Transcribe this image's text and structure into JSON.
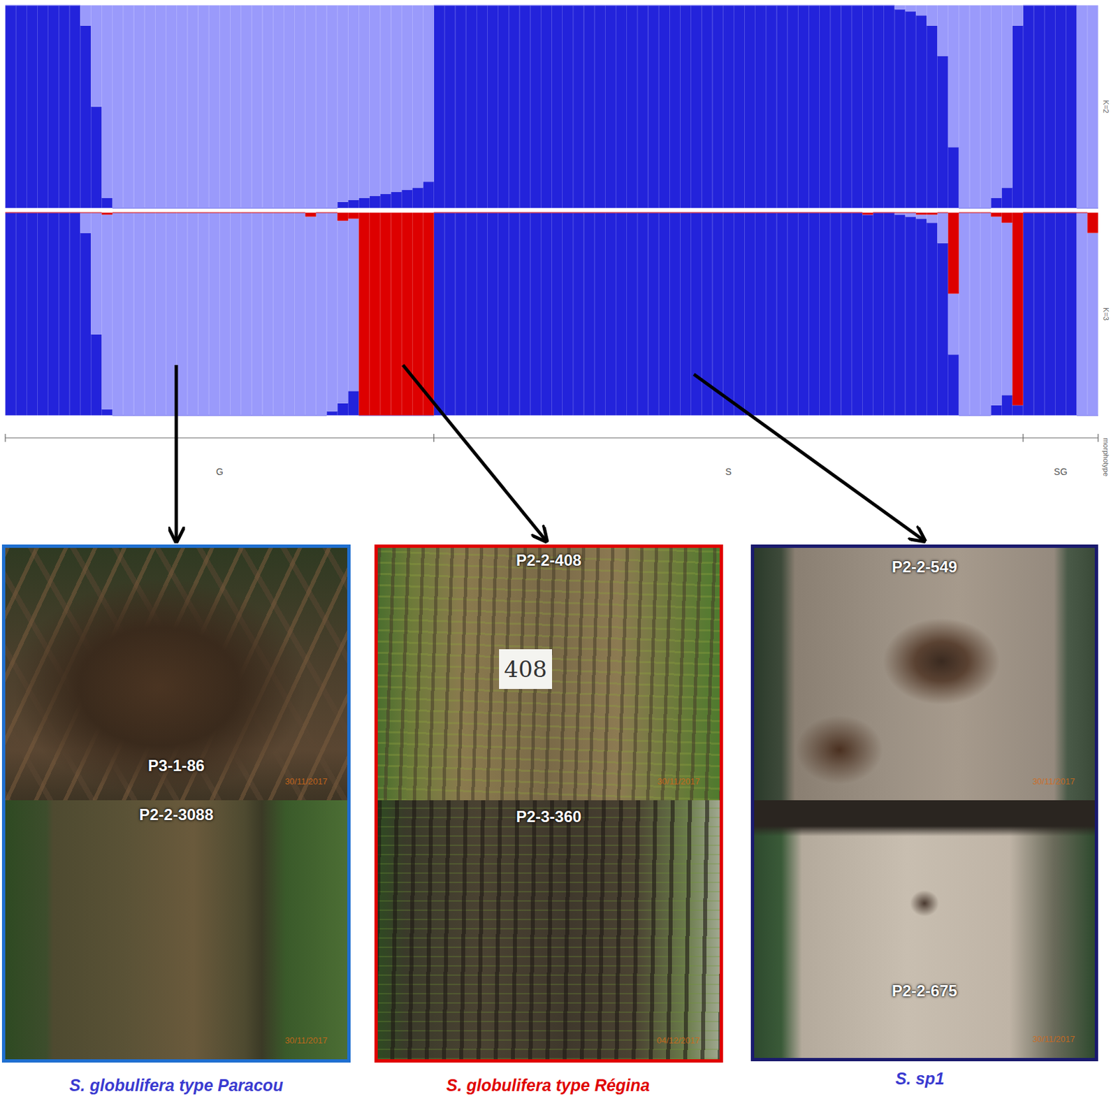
{
  "chart_data": [
    {
      "type": "bar",
      "title": "K=2",
      "stacked": true,
      "tick_labels": false,
      "grid": false,
      "ylim": [
        0,
        1
      ],
      "categories": [
        null,
        null,
        null,
        null,
        null,
        null,
        null,
        null,
        null,
        null,
        null,
        null,
        null,
        null,
        null,
        null,
        null,
        null,
        null,
        null,
        null,
        null,
        null,
        null,
        null,
        null,
        null,
        null,
        null,
        null,
        null,
        null,
        null,
        null,
        null,
        null,
        null,
        null,
        null,
        null,
        null,
        null,
        null,
        null,
        null,
        null,
        null,
        null,
        null,
        null,
        null,
        null,
        null,
        null,
        null,
        null,
        null,
        null,
        null,
        null,
        null,
        null,
        null,
        null,
        null,
        null,
        null,
        null,
        null,
        null,
        null,
        null,
        null,
        null,
        null,
        null,
        null,
        null,
        null,
        null,
        null,
        null,
        null,
        null,
        null,
        null,
        null,
        null,
        null,
        null,
        null,
        null,
        null,
        null,
        null,
        null,
        null,
        null,
        null,
        null,
        null,
        null
      ],
      "series": [
        {
          "color": "#2323db",
          "values": [
            1,
            1,
            1,
            1,
            1,
            1,
            1,
            0.9,
            0.5,
            0.05,
            0,
            0,
            0,
            0,
            0,
            0,
            0,
            0,
            0,
            0,
            0,
            0,
            0,
            0,
            0,
            0,
            0,
            0,
            0,
            0,
            0,
            0.03,
            0.04,
            0.05,
            0.06,
            0.07,
            0.08,
            0.09,
            0.1,
            0.13,
            1,
            1,
            1,
            1,
            1,
            1,
            1,
            1,
            1,
            1,
            1,
            1,
            1,
            1,
            1,
            1,
            1,
            1,
            1,
            1,
            1,
            1,
            1,
            1,
            1,
            1,
            1,
            1,
            1,
            1,
            1,
            1,
            1,
            1,
            1,
            1,
            1,
            1,
            1,
            1,
            1,
            1,
            1,
            0.98,
            0.97,
            0.95,
            0.9,
            0.75,
            0.3,
            0,
            0,
            0,
            0.05,
            0.1,
            0.9,
            1,
            1,
            1,
            1,
            1,
            0,
            0
          ]
        },
        {
          "color": "#9a9afb",
          "values": [
            0,
            0,
            0,
            0,
            0,
            0,
            0,
            0.1,
            0.5,
            0.95,
            1,
            1,
            1,
            1,
            1,
            1,
            1,
            1,
            1,
            1,
            1,
            1,
            1,
            1,
            1,
            1,
            1,
            1,
            1,
            1,
            1,
            0.97,
            0.96,
            0.95,
            0.94,
            0.93,
            0.92,
            0.91,
            0.9,
            0.87,
            0,
            0,
            0,
            0,
            0,
            0,
            0,
            0,
            0,
            0,
            0,
            0,
            0,
            0,
            0,
            0,
            0,
            0,
            0,
            0,
            0,
            0,
            0,
            0,
            0,
            0,
            0,
            0,
            0,
            0,
            0,
            0,
            0,
            0,
            0,
            0,
            0,
            0,
            0,
            0,
            0,
            0,
            0,
            0.02,
            0.03,
            0.05,
            0.1,
            0.25,
            0.7,
            1,
            1,
            1,
            0.95,
            0.9,
            0.1,
            0,
            0,
            0,
            0,
            0,
            1,
            1
          ]
        }
      ]
    },
    {
      "type": "bar",
      "title": "K=3",
      "stacked": true,
      "tick_labels": false,
      "grid": false,
      "ylim": [
        0,
        1
      ],
      "categories": [
        null,
        null,
        null,
        null,
        null,
        null,
        null,
        null,
        null,
        null,
        null,
        null,
        null,
        null,
        null,
        null,
        null,
        null,
        null,
        null,
        null,
        null,
        null,
        null,
        null,
        null,
        null,
        null,
        null,
        null,
        null,
        null,
        null,
        null,
        null,
        null,
        null,
        null,
        null,
        null,
        null,
        null,
        null,
        null,
        null,
        null,
        null,
        null,
        null,
        null,
        null,
        null,
        null,
        null,
        null,
        null,
        null,
        null,
        null,
        null,
        null,
        null,
        null,
        null,
        null,
        null,
        null,
        null,
        null,
        null,
        null,
        null,
        null,
        null,
        null,
        null,
        null,
        null,
        null,
        null,
        null,
        null,
        null,
        null,
        null,
        null,
        null,
        null,
        null,
        null,
        null,
        null,
        null,
        null,
        null,
        null,
        null,
        null,
        null,
        null,
        null,
        null
      ],
      "series": [
        {
          "color": "#2323db",
          "values": [
            1,
            1,
            1,
            1,
            1,
            1,
            1,
            0.9,
            0.4,
            0.03,
            0,
            0,
            0,
            0,
            0,
            0,
            0,
            0,
            0,
            0,
            0,
            0,
            0,
            0,
            0,
            0,
            0,
            0,
            0,
            0,
            0.02,
            0.06,
            0.12,
            0,
            0,
            0,
            0,
            0,
            0,
            0,
            1,
            1,
            1,
            1,
            1,
            1,
            1,
            1,
            1,
            1,
            1,
            1,
            1,
            1,
            1,
            1,
            1,
            1,
            1,
            1,
            1,
            1,
            1,
            1,
            1,
            1,
            1,
            1,
            1,
            1,
            1,
            1,
            1,
            1,
            1,
            1,
            1,
            1,
            1,
            1,
            0.99,
            1,
            1,
            0.99,
            0.98,
            0.97,
            0.95,
            0.85,
            0.3,
            0,
            0,
            0,
            0.05,
            0.1,
            0.05,
            1,
            1,
            1,
            1,
            1,
            0,
            0
          ]
        },
        {
          "color": "#9a9afb",
          "values": [
            0,
            0,
            0,
            0,
            0,
            0,
            0,
            0.1,
            0.6,
            0.96,
            1,
            1,
            1,
            1,
            1,
            1,
            1,
            1,
            1,
            1,
            1,
            1,
            1,
            1,
            1,
            1,
            1,
            1,
            0.98,
            1,
            0.98,
            0.9,
            0.85,
            0,
            0,
            0,
            0,
            0,
            0,
            0,
            0,
            0,
            0,
            0,
            0,
            0,
            0,
            0,
            0,
            0,
            0,
            0,
            0,
            0,
            0,
            0,
            0,
            0,
            0,
            0,
            0,
            0,
            0,
            0,
            0,
            0,
            0,
            0,
            0,
            0,
            0,
            0,
            0,
            0,
            0,
            0,
            0,
            0,
            0,
            0,
            0,
            0,
            0,
            0.01,
            0.02,
            0.02,
            0.04,
            0.15,
            0.3,
            1,
            1,
            1,
            0.93,
            0.85,
            0,
            0,
            0,
            0,
            0,
            0,
            1,
            0.9
          ]
        },
        {
          "color": "#dd0000",
          "values": [
            0,
            0,
            0,
            0,
            0,
            0,
            0,
            0,
            0,
            0.01,
            0,
            0,
            0,
            0,
            0,
            0,
            0,
            0,
            0,
            0,
            0,
            0,
            0,
            0,
            0,
            0,
            0,
            0,
            0.02,
            0,
            0,
            0.04,
            0.03,
            1,
            1,
            1,
            1,
            1,
            1,
            1,
            0,
            0,
            0,
            0,
            0,
            0,
            0,
            0,
            0,
            0,
            0,
            0,
            0,
            0,
            0,
            0,
            0,
            0,
            0,
            0,
            0,
            0,
            0,
            0,
            0,
            0,
            0,
            0,
            0,
            0,
            0,
            0,
            0,
            0,
            0,
            0,
            0,
            0,
            0,
            0,
            0.01,
            0,
            0,
            0,
            0,
            0.01,
            0.01,
            0,
            0.4,
            0,
            0,
            0,
            0.02,
            0.05,
            0.95,
            0,
            0,
            0,
            0,
            0,
            0,
            0.1
          ]
        }
      ]
    }
  ],
  "groups": {
    "title": "morphotype",
    "items": [
      {
        "label": "G",
        "count": 40
      },
      {
        "label": "S",
        "count": 55
      },
      {
        "label": "SG",
        "count": 7
      }
    ]
  },
  "panels": [
    {
      "caption": "S. globulifera type Paracou",
      "photos": [
        {
          "id": "P3-1-86",
          "date": "30/11/2017"
        },
        {
          "id": "P2-2-3088",
          "date": "30/11/2017"
        }
      ]
    },
    {
      "caption": "S. globulifera type Régina",
      "photos": [
        {
          "id": "P2-2-408",
          "date": "30/11/2017",
          "tag": "408"
        },
        {
          "id": "P2-3-360",
          "date": "04/12/2017"
        }
      ]
    },
    {
      "caption": "S. sp1",
      "photos": [
        {
          "id": "P2-2-549",
          "date": "30/11/2017"
        },
        {
          "id": "P2-2-675",
          "date": "30/11/2017"
        }
      ]
    }
  ]
}
